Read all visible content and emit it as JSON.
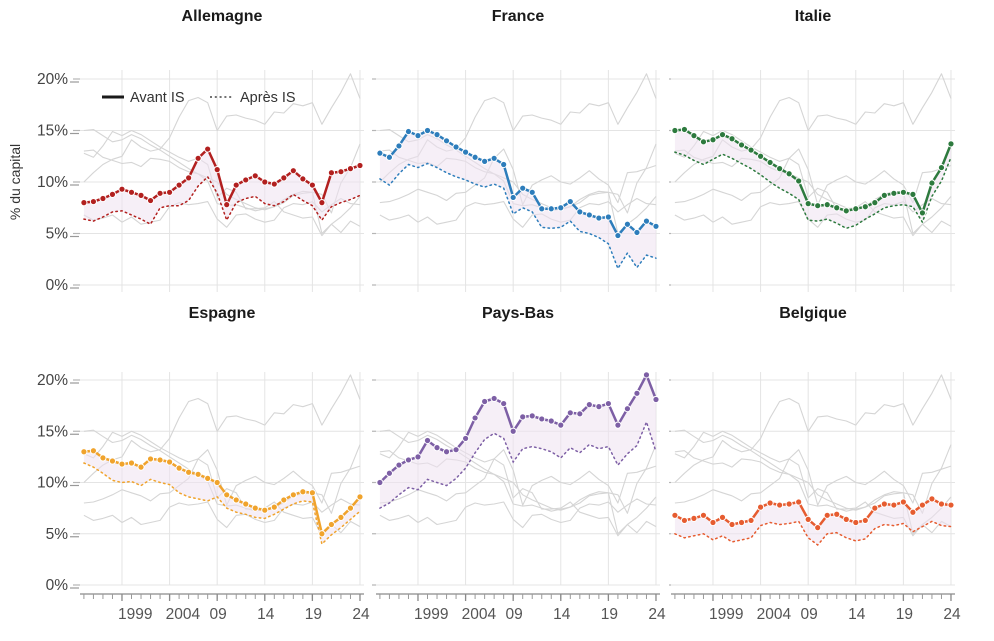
{
  "chart_data": {
    "type": "line",
    "ylabel": "% du capital",
    "unit": "%",
    "years": [
      1995,
      1996,
      1997,
      1998,
      1999,
      2000,
      2001,
      2002,
      2003,
      2004,
      2005,
      2006,
      2007,
      2008,
      2009,
      2010,
      2011,
      2012,
      2013,
      2014,
      2015,
      2016,
      2017,
      2018,
      2019,
      2020,
      2021,
      2022,
      2023,
      2024
    ],
    "x_tick_years": [
      1999,
      2004,
      2009,
      2014,
      2019,
      2024
    ],
    "x_tick_labels": [
      "1999",
      "2004",
      "09",
      "14",
      "19",
      "24"
    ],
    "y_ticks": [
      0,
      5,
      10,
      15,
      20
    ],
    "y_tick_labels": [
      "0%",
      "5%",
      "10%",
      "15%",
      "20%"
    ],
    "ylim": [
      0,
      21
    ],
    "grid": true,
    "legend": [
      {
        "label": "Avant IS",
        "style": "solid"
      },
      {
        "label": "Après IS",
        "style": "dotted"
      }
    ],
    "legend_position": "top-left-panel",
    "style": {
      "band_fill": "#efe1f1",
      "band_opacity": 0.55,
      "other_line_color": "#d5d5d5",
      "gridline_color": "#e4e4e4",
      "axis_color": "#8a8a8a",
      "tick_color": "#999999",
      "label_color": "#555555",
      "legend_swatch_color": "#1a1a1a"
    },
    "panels_order": [
      "Allemagne",
      "France",
      "Italie",
      "Espagne",
      "Pays-Bas",
      "Belgique"
    ],
    "series": [
      {
        "name": "Allemagne",
        "color": "#b2201f",
        "avant": [
          8.0,
          8.1,
          8.4,
          8.8,
          9.3,
          9.0,
          8.7,
          8.2,
          8.9,
          9.0,
          9.7,
          10.4,
          12.3,
          13.2,
          11.2,
          7.8,
          9.7,
          10.2,
          10.6,
          10.0,
          9.8,
          10.4,
          11.1,
          10.3,
          9.7,
          8.0,
          10.9,
          11.0,
          11.3,
          11.6
        ],
        "apres": [
          6.4,
          6.2,
          6.6,
          7.1,
          7.2,
          6.8,
          6.4,
          5.9,
          7.5,
          7.7,
          7.7,
          8.2,
          9.6,
          10.5,
          8.9,
          6.3,
          8.0,
          8.4,
          8.6,
          7.9,
          7.7,
          8.1,
          8.8,
          8.2,
          7.7,
          6.3,
          7.6,
          8.0,
          8.3,
          8.7
        ]
      },
      {
        "name": "France",
        "color": "#2d7dbb",
        "avant": [
          12.8,
          12.4,
          13.5,
          14.9,
          14.5,
          15.0,
          14.6,
          14.0,
          13.4,
          12.9,
          12.4,
          12.0,
          12.3,
          11.7,
          8.5,
          9.4,
          9.0,
          7.4,
          7.4,
          7.5,
          8.1,
          7.1,
          6.8,
          6.5,
          6.6,
          4.8,
          5.9,
          5.1,
          6.2,
          5.7
        ],
        "apres": [
          10.3,
          9.7,
          10.8,
          11.7,
          11.4,
          11.8,
          11.4,
          10.9,
          10.5,
          10.2,
          9.8,
          9.5,
          9.8,
          9.4,
          6.9,
          7.5,
          7.1,
          5.6,
          5.5,
          5.6,
          6.2,
          5.2,
          5.0,
          4.6,
          4.0,
          1.6,
          3.1,
          1.7,
          2.9,
          2.6
        ]
      },
      {
        "name": "Italie",
        "color": "#2d7a3e",
        "avant": [
          15.0,
          15.1,
          14.5,
          13.9,
          14.1,
          14.6,
          14.2,
          13.6,
          13.1,
          12.5,
          11.9,
          11.3,
          10.8,
          10.1,
          7.9,
          7.7,
          7.8,
          7.5,
          7.2,
          7.4,
          7.6,
          8.0,
          8.7,
          8.9,
          9.0,
          8.8,
          7.0,
          9.9,
          11.4,
          13.7
        ],
        "apres": [
          12.9,
          12.6,
          12.1,
          11.7,
          12.2,
          12.7,
          12.3,
          11.8,
          11.3,
          10.7,
          10.0,
          9.4,
          8.9,
          8.3,
          6.3,
          6.2,
          6.4,
          6.0,
          5.5,
          5.8,
          6.4,
          6.9,
          7.5,
          7.7,
          7.8,
          7.6,
          6.1,
          8.6,
          10.1,
          12.4
        ]
      },
      {
        "name": "Espagne",
        "color": "#f0a32c",
        "avant": [
          13.0,
          13.1,
          12.4,
          12.1,
          11.8,
          11.9,
          11.5,
          12.3,
          12.2,
          12.0,
          11.4,
          11.0,
          10.8,
          10.4,
          10.0,
          8.8,
          8.3,
          7.9,
          7.5,
          7.3,
          7.6,
          8.3,
          8.8,
          9.1,
          9.0,
          5.0,
          5.9,
          6.6,
          7.5,
          8.6
        ],
        "apres": [
          11.9,
          11.5,
          10.9,
          10.2,
          10.0,
          10.1,
          9.7,
          10.3,
          10.0,
          9.8,
          9.0,
          8.6,
          8.4,
          8.2,
          8.6,
          7.5,
          7.1,
          6.9,
          6.6,
          6.5,
          6.9,
          7.4,
          7.9,
          8.2,
          8.1,
          4.0,
          4.9,
          5.6,
          6.4,
          7.2
        ]
      },
      {
        "name": "Pays-Bas",
        "color": "#7d5fa5",
        "avant": [
          10.0,
          10.9,
          11.7,
          12.2,
          12.5,
          14.1,
          13.4,
          13.0,
          13.2,
          14.3,
          16.3,
          17.9,
          18.2,
          17.7,
          15.0,
          16.4,
          16.5,
          16.2,
          16.0,
          15.6,
          16.8,
          16.7,
          17.6,
          17.4,
          17.7,
          15.6,
          17.2,
          18.7,
          20.5,
          18.1
        ],
        "apres": [
          7.5,
          8.0,
          8.8,
          9.5,
          9.3,
          10.3,
          10.0,
          9.7,
          10.4,
          11.4,
          12.9,
          14.2,
          14.8,
          14.3,
          12.0,
          13.3,
          13.5,
          13.3,
          13.0,
          12.4,
          13.4,
          12.9,
          13.7,
          13.3,
          13.5,
          11.7,
          12.8,
          13.6,
          15.9,
          13.0
        ]
      },
      {
        "name": "Belgique",
        "color": "#e65c30",
        "avant": [
          6.8,
          6.3,
          6.5,
          6.8,
          6.1,
          6.6,
          5.9,
          6.1,
          6.3,
          7.6,
          8.0,
          7.8,
          7.9,
          8.1,
          6.4,
          5.6,
          6.8,
          6.9,
          6.4,
          6.1,
          6.3,
          7.5,
          7.9,
          7.8,
          8.1,
          7.1,
          7.8,
          8.4,
          7.9,
          7.8
        ],
        "apres": [
          5.0,
          4.6,
          4.8,
          5.0,
          4.4,
          4.8,
          4.2,
          4.4,
          4.6,
          5.8,
          6.1,
          5.9,
          6.0,
          6.2,
          4.6,
          3.9,
          5.0,
          5.1,
          4.6,
          4.3,
          4.5,
          5.5,
          5.9,
          5.8,
          6.0,
          5.2,
          5.7,
          6.2,
          5.8,
          5.7
        ]
      }
    ]
  }
}
